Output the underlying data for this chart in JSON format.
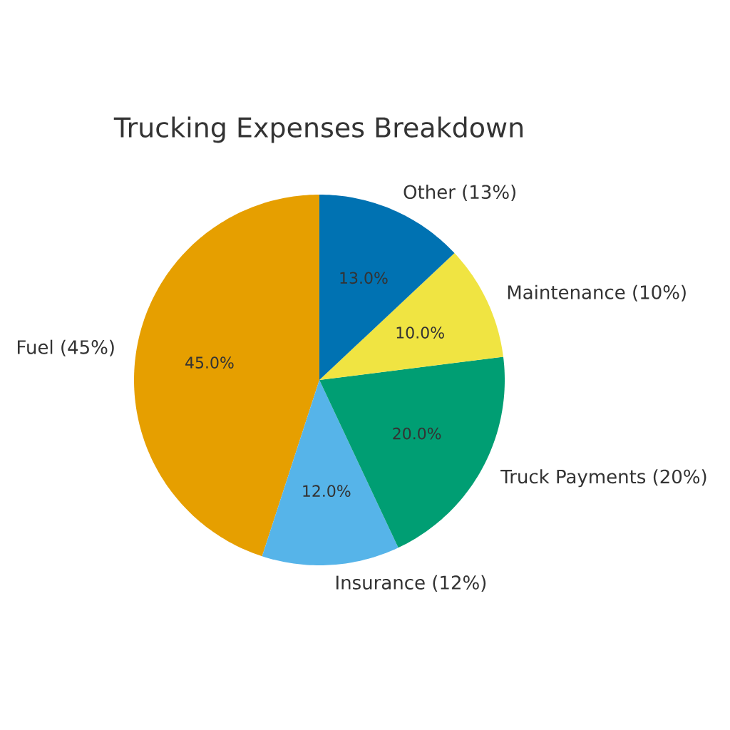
{
  "chart_data": {
    "type": "pie",
    "title": "Trucking Expenses Breakdown",
    "categories": [
      "Fuel (45%)",
      "Insurance (12%)",
      "Truck Payments (20%)",
      "Maintenance (10%)",
      "Other (13%)"
    ],
    "values": [
      45,
      12,
      20,
      10,
      13
    ],
    "colors": [
      "#e69f00",
      "#56b4e9",
      "#009e73",
      "#f0e442",
      "#0072b2"
    ],
    "value_labels": [
      "45.0%",
      "12.0%",
      "20.0%",
      "10.0%",
      "13.0%"
    ]
  }
}
